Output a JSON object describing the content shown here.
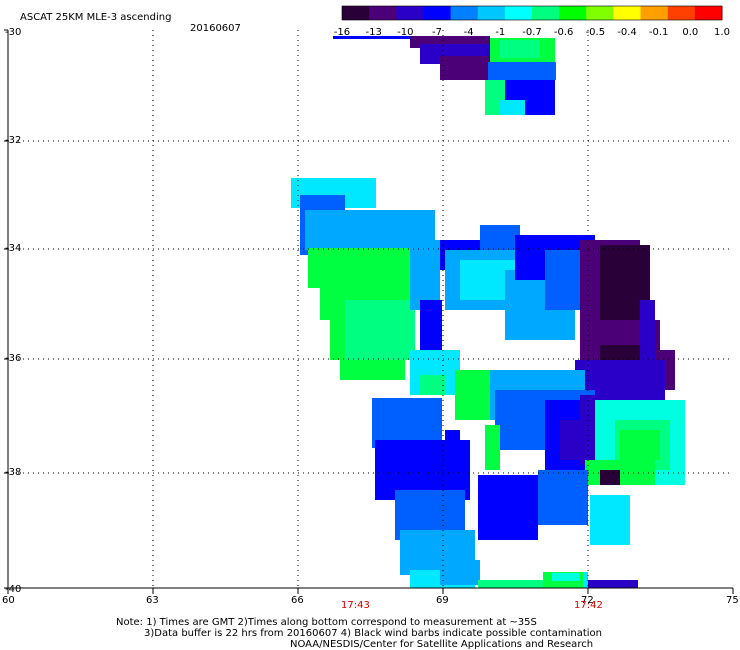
{
  "header": {
    "title": "ASCAT 25KM MLE-3 ascending",
    "date": "20160607"
  },
  "colorbar": {
    "labels": [
      "-16",
      "-13",
      "-10",
      "-7",
      "-4",
      "-1",
      "-0.7",
      "-0.6",
      "-0.5",
      "-0.4",
      "-0.1",
      "0.0",
      "1.0"
    ],
    "colors": [
      "#2a0038",
      "#4b0078",
      "#2a00c8",
      "#0000ff",
      "#0080ff",
      "#00c8ff",
      "#00ffff",
      "#00ff80",
      "#00ff00",
      "#80ff00",
      "#ffff00",
      "#ffa000",
      "#ff4000",
      "#ff0000"
    ]
  },
  "axes": {
    "x_ticks": [
      "60",
      "63",
      "66",
      "69",
      "72",
      "75"
    ],
    "y_ticks": [
      "-30",
      "-32",
      "-34",
      "-36",
      "-38",
      "-40"
    ]
  },
  "pass_times": [
    "17:43",
    "17:42"
  ],
  "notes": {
    "line1": "Note: 1) Times are GMT 2)Times along bottom correspond to measurement at ~35S",
    "line2": "3)Data buffer is 22 hrs from 20160607 4) Black wind barbs indicate possible contamination",
    "line3": "NOAA/NESDIS/Center for Satellite Applications and Research"
  }
}
